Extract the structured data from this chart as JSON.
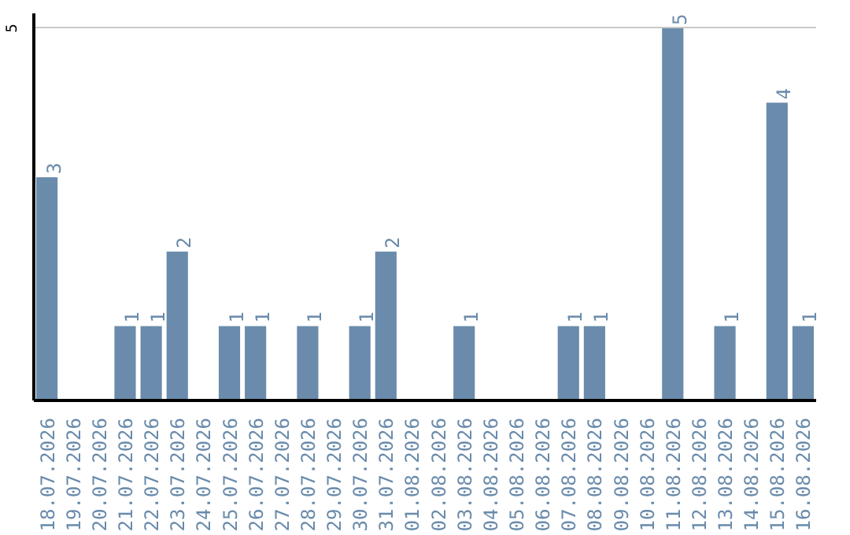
{
  "chart_data": {
    "type": "bar",
    "categories": [
      "18.07.2026",
      "19.07.2026",
      "20.07.2026",
      "21.07.2026",
      "22.07.2026",
      "23.07.2026",
      "24.07.2026",
      "25.07.2026",
      "26.07.2026",
      "27.07.2026",
      "28.07.2026",
      "29.07.2026",
      "30.07.2026",
      "31.07.2026",
      "01.08.2026",
      "02.08.2026",
      "03.08.2026",
      "04.08.2026",
      "05.08.2026",
      "06.08.2026",
      "07.08.2026",
      "08.08.2026",
      "09.08.2026",
      "10.08.2026",
      "11.08.2026",
      "12.08.2026",
      "13.08.2026",
      "14.08.2026",
      "15.08.2026",
      "16.08.2026"
    ],
    "values": [
      3,
      0,
      0,
      1,
      1,
      2,
      0,
      1,
      1,
      0,
      1,
      0,
      1,
      2,
      0,
      0,
      1,
      0,
      0,
      0,
      1,
      1,
      0,
      0,
      5,
      0,
      1,
      0,
      4,
      1
    ],
    "value_labels": [
      "3",
      null,
      null,
      "1",
      "1",
      "2",
      null,
      "1",
      "1",
      null,
      "1",
      null,
      "1",
      "2",
      null,
      null,
      "1",
      null,
      null,
      null,
      "1",
      "1",
      null,
      null,
      "5",
      null,
      "1",
      null,
      "4",
      "1"
    ],
    "color": "#6a8bab",
    "ylim": [
      0,
      5.2
    ],
    "yticks": [
      5
    ],
    "grid": "y"
  }
}
